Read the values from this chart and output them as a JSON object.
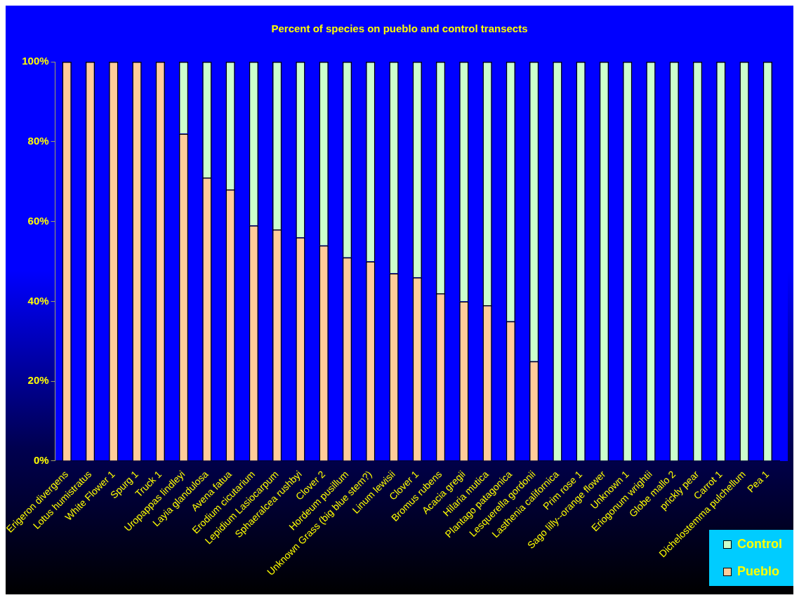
{
  "chart_data": {
    "type": "bar",
    "title": "Percent of species on pueblo and control transects",
    "categories": [
      "Erigeron divergens",
      "Lotus humistratus",
      "White Flower 1",
      "Spurg 1",
      "Truck 1",
      "Uropappas lindleyi",
      "Layia glandulosa",
      "Avena fatua",
      "Erodium cicutarium",
      "Lepidium Lasiocarpum",
      "Sphaeralcea rushbyi",
      "Clover 2",
      "Hordeum pusillum",
      "Unknown Grass (big blue stem?)",
      "Linum lewisii",
      "Clover 1",
      "Bromus rubens",
      "Acacia gregii",
      "Hilaria mutica",
      "Plantago patagonica",
      "Lesquerella gordonii",
      "Lasthenia californica",
      "Prim rose 1",
      "Sago lilly--orange flower",
      "Unknown 1",
      "Eriogonum wrightii",
      "Globe mallo 2",
      "prickly pear",
      "Carrot 1",
      "Dichelostemma pulchellum",
      "Pea 1"
    ],
    "series": [
      {
        "name": "Pueblo",
        "color": "#ffcc99",
        "values": [
          100,
          100,
          100,
          100,
          100,
          82,
          71,
          68,
          59,
          58,
          56,
          54,
          51,
          50,
          47,
          46,
          42,
          40,
          39,
          35,
          25,
          0,
          0,
          0,
          0,
          0,
          0,
          0,
          0,
          0,
          0
        ]
      },
      {
        "name": "Control",
        "color": "#ccffcc",
        "values": [
          0,
          0,
          0,
          0,
          0,
          18,
          29,
          32,
          41,
          42,
          44,
          46,
          49,
          50,
          53,
          54,
          58,
          60,
          61,
          65,
          75,
          100,
          100,
          100,
          100,
          100,
          100,
          100,
          100,
          100,
          100
        ]
      }
    ],
    "stacked": true,
    "ylim": [
      0,
      100
    ],
    "yticks": [
      {
        "value": 0,
        "label": "0%"
      },
      {
        "value": 20,
        "label": "20%"
      },
      {
        "value": 40,
        "label": "40%"
      },
      {
        "value": 60,
        "label": "60%"
      },
      {
        "value": 80,
        "label": "80%"
      },
      {
        "value": 100,
        "label": "100%"
      }
    ],
    "grid": false,
    "legend": "bottom right"
  }
}
